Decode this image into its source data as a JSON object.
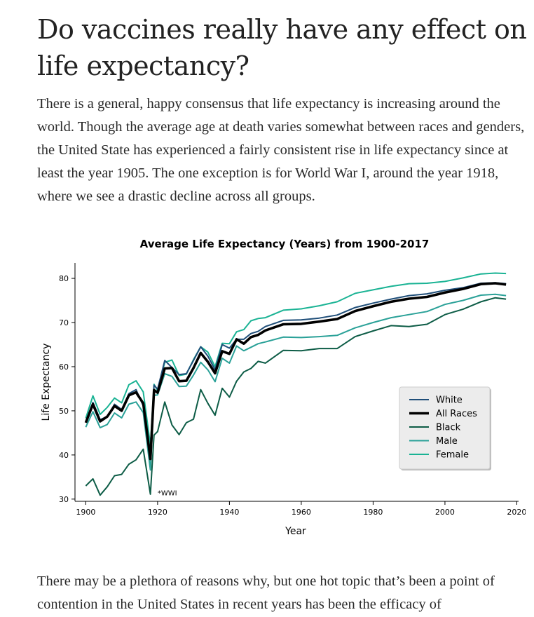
{
  "article": {
    "title": "Do vaccines really have any effect on life expectancy?",
    "intro": "There is a general, happy consensus that life expectancy is increasing around the world. Though the average age at death varies somewhat between races and genders, the United State has experienced a fairly consistent rise in life expectancy since at least the year 1905. The one exception is for World War I, around the year 1918, where we see a drastic decline across all groups.",
    "outro": "There may be a plethora of reasons why, but one hot topic that’s been a point of contention in the United States in recent years has been the efficacy of"
  },
  "chart_data": {
    "type": "line",
    "title": "Average Life Expectancy (Years) from 1900-2017",
    "xlabel": "Year",
    "ylabel": "Life Expectancy",
    "xlim": [
      1897,
      2020.5
    ],
    "ylim": [
      29.5,
      83.5
    ],
    "xticks": [
      1900,
      1920,
      1940,
      1960,
      1980,
      2000,
      2020
    ],
    "yticks": [
      30,
      40,
      50,
      60,
      70,
      80
    ],
    "grid": false,
    "legend_position": "center-right",
    "annotation": {
      "text": "*WWI",
      "x": 1920,
      "y": 31.5
    },
    "series": [
      {
        "name": "White",
        "color": "#1f4e79",
        "width": 2,
        "x": [
          1900,
          1902,
          1904,
          1906,
          1908,
          1910,
          1912,
          1914,
          1916,
          1918,
          1919,
          1920,
          1922,
          1924,
          1926,
          1928,
          1930,
          1932,
          1934,
          1936,
          1938,
          1940,
          1942,
          1944,
          1946,
          1948,
          1950,
          1955,
          1960,
          1965,
          1970,
          1975,
          1980,
          1985,
          1990,
          1995,
          2000,
          2005,
          2010,
          2014,
          2017
        ],
        "y": [
          47.6,
          51.9,
          48.0,
          48.7,
          51.5,
          50.3,
          53.9,
          54.8,
          51.1,
          39.8,
          55.8,
          54.9,
          61.4,
          59.8,
          58.2,
          58.4,
          61.4,
          64.5,
          62.4,
          59.3,
          65.0,
          64.2,
          66.2,
          66.2,
          67.5,
          68.0,
          69.1,
          70.5,
          70.6,
          71.0,
          71.7,
          73.4,
          74.4,
          75.3,
          76.1,
          76.5,
          77.3,
          77.9,
          78.9,
          79.0,
          78.8
        ]
      },
      {
        "name": "All Races",
        "color": "#000000",
        "width": 3.6,
        "x": [
          1900,
          1902,
          1904,
          1906,
          1908,
          1910,
          1912,
          1914,
          1916,
          1918,
          1919,
          1920,
          1922,
          1924,
          1926,
          1928,
          1930,
          1932,
          1934,
          1936,
          1938,
          1940,
          1942,
          1944,
          1946,
          1948,
          1950,
          1955,
          1960,
          1965,
          1970,
          1975,
          1980,
          1985,
          1990,
          1995,
          2000,
          2005,
          2010,
          2014,
          2017
        ],
        "y": [
          47.3,
          51.5,
          47.6,
          48.7,
          51.1,
          50.0,
          53.5,
          54.2,
          51.7,
          39.1,
          54.7,
          54.1,
          59.6,
          59.7,
          56.7,
          56.8,
          59.7,
          63.1,
          61.1,
          58.5,
          63.5,
          62.9,
          66.2,
          65.2,
          66.7,
          67.2,
          68.2,
          69.6,
          69.7,
          70.2,
          70.8,
          72.6,
          73.7,
          74.7,
          75.4,
          75.8,
          76.8,
          77.6,
          78.7,
          78.9,
          78.6
        ]
      },
      {
        "name": "Black",
        "color": "#0d5c46",
        "width": 2,
        "x": [
          1900,
          1902,
          1904,
          1906,
          1908,
          1910,
          1912,
          1914,
          1916,
          1918,
          1919,
          1920,
          1922,
          1924,
          1926,
          1928,
          1930,
          1932,
          1934,
          1936,
          1938,
          1940,
          1942,
          1944,
          1946,
          1948,
          1950,
          1955,
          1960,
          1965,
          1970,
          1975,
          1980,
          1985,
          1990,
          1995,
          2000,
          2005,
          2010,
          2014,
          2017
        ],
        "y": [
          33.0,
          34.6,
          30.9,
          32.8,
          35.3,
          35.6,
          37.9,
          38.9,
          41.3,
          31.1,
          44.5,
          45.3,
          52.0,
          46.8,
          44.6,
          47.3,
          48.1,
          54.8,
          51.7,
          49.0,
          55.1,
          53.1,
          56.7,
          58.8,
          59.6,
          61.2,
          60.8,
          63.7,
          63.6,
          64.1,
          64.1,
          66.8,
          68.1,
          69.3,
          69.1,
          69.6,
          71.8,
          73.0,
          74.7,
          75.6,
          75.3
        ]
      },
      {
        "name": "Male",
        "color": "#2aa198",
        "width": 2,
        "x": [
          1900,
          1902,
          1904,
          1906,
          1908,
          1910,
          1912,
          1914,
          1916,
          1918,
          1919,
          1920,
          1922,
          1924,
          1926,
          1928,
          1930,
          1932,
          1934,
          1936,
          1938,
          1940,
          1942,
          1944,
          1946,
          1948,
          1950,
          1955,
          1960,
          1965,
          1970,
          1975,
          1980,
          1985,
          1990,
          1995,
          2000,
          2005,
          2010,
          2014,
          2017
        ],
        "y": [
          46.3,
          49.8,
          46.2,
          46.9,
          49.5,
          48.4,
          51.5,
          52.0,
          49.6,
          36.6,
          53.5,
          53.6,
          58.4,
          57.8,
          55.5,
          55.6,
          58.1,
          61.0,
          59.3,
          56.6,
          61.9,
          60.8,
          64.7,
          63.6,
          64.4,
          65.2,
          65.6,
          66.7,
          66.6,
          66.8,
          67.1,
          68.8,
          70.0,
          71.1,
          71.8,
          72.5,
          74.1,
          75.0,
          76.2,
          76.4,
          76.1
        ]
      },
      {
        "name": "Female",
        "color": "#1ab394",
        "width": 2,
        "x": [
          1900,
          1902,
          1904,
          1906,
          1908,
          1910,
          1912,
          1914,
          1916,
          1918,
          1919,
          1920,
          1922,
          1924,
          1926,
          1928,
          1930,
          1932,
          1934,
          1936,
          1938,
          1940,
          1942,
          1944,
          1946,
          1948,
          1950,
          1955,
          1960,
          1965,
          1970,
          1975,
          1980,
          1985,
          1990,
          1995,
          2000,
          2005,
          2010,
          2014,
          2017
        ],
        "y": [
          48.3,
          53.4,
          49.2,
          50.8,
          52.9,
          51.8,
          55.9,
          56.8,
          54.3,
          42.2,
          56.0,
          54.6,
          61.0,
          61.5,
          58.0,
          58.3,
          61.6,
          64.5,
          63.3,
          60.0,
          65.3,
          65.2,
          67.9,
          68.4,
          70.4,
          70.9,
          71.1,
          72.8,
          73.1,
          73.8,
          74.7,
          76.6,
          77.4,
          78.2,
          78.8,
          78.9,
          79.3,
          80.1,
          81.0,
          81.2,
          81.1
        ]
      }
    ]
  }
}
